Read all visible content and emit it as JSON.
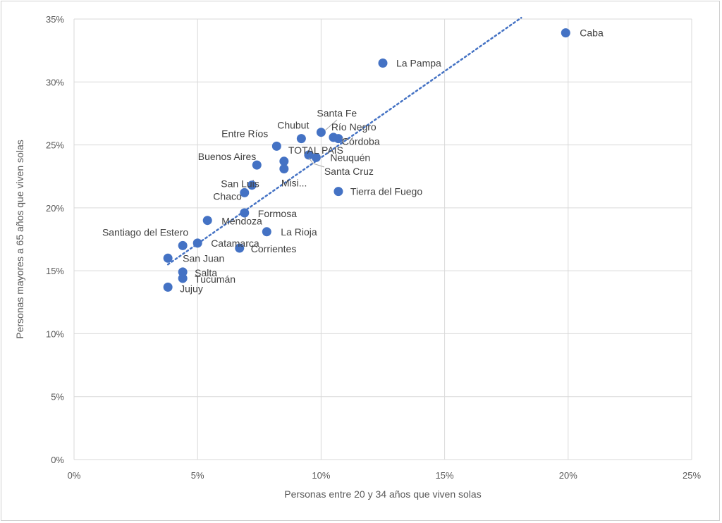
{
  "chart_data": {
    "type": "scatter",
    "title": "",
    "xlabel": "Personas entre 20 y 34 años que viven solas",
    "ylabel": "Personas mayores a 65 años que viven solas",
    "xlim": [
      0,
      0.25
    ],
    "ylim": [
      0,
      0.35
    ],
    "x_ticks": [
      0,
      0.05,
      0.1,
      0.15,
      0.2,
      0.25
    ],
    "y_ticks": [
      0,
      0.05,
      0.1,
      0.15,
      0.2,
      0.25,
      0.3,
      0.35
    ],
    "x_tick_labels": [
      "0%",
      "5%",
      "10%",
      "15%",
      "20%",
      "25%"
    ],
    "y_tick_labels": [
      "0%",
      "5%",
      "10%",
      "15%",
      "20%",
      "25%",
      "30%",
      "35%"
    ],
    "grid": true,
    "legend": "none",
    "marker_color": "#4472c4",
    "trendline": {
      "type": "linear",
      "style": "dotted",
      "color": "#4472c4",
      "x0": 0.038,
      "y0": 0.155,
      "x1": 0.181,
      "y1": 0.351
    },
    "points": [
      {
        "label": "Caba",
        "x": 0.199,
        "y": 0.339
      },
      {
        "label": "La Pampa",
        "x": 0.125,
        "y": 0.315
      },
      {
        "label": "Santa Fe",
        "x": 0.1,
        "y": 0.26
      },
      {
        "label": "Río Negro",
        "x": 0.105,
        "y": 0.256
      },
      {
        "label": "Córdoba",
        "x": 0.107,
        "y": 0.255
      },
      {
        "label": "Chubut",
        "x": 0.092,
        "y": 0.255
      },
      {
        "label": "Entre Ríos",
        "x": 0.082,
        "y": 0.249
      },
      {
        "label": "TOTAL PAIS",
        "x": 0.095,
        "y": 0.242
      },
      {
        "label": "Neuquén",
        "x": 0.098,
        "y": 0.24
      },
      {
        "label": "Santa Cruz",
        "x": 0.085,
        "y": 0.237
      },
      {
        "label": "Buenos Aires",
        "x": 0.074,
        "y": 0.234
      },
      {
        "label": "Misi...",
        "x": 0.085,
        "y": 0.231
      },
      {
        "label": "San Luis",
        "x": 0.072,
        "y": 0.218
      },
      {
        "label": "Chaco",
        "x": 0.069,
        "y": 0.212
      },
      {
        "label": "Tierra del Fuego",
        "x": 0.107,
        "y": 0.213
      },
      {
        "label": "Formosa",
        "x": 0.069,
        "y": 0.196
      },
      {
        "label": "Mendoza",
        "x": 0.054,
        "y": 0.19
      },
      {
        "label": "La Rioja",
        "x": 0.078,
        "y": 0.181
      },
      {
        "label": "Catamarca",
        "x": 0.05,
        "y": 0.172
      },
      {
        "label": "Santiago del Estero",
        "x": 0.044,
        "y": 0.17
      },
      {
        "label": "Corrientes",
        "x": 0.067,
        "y": 0.168
      },
      {
        "label": "San Juan",
        "x": 0.038,
        "y": 0.16
      },
      {
        "label": "Salta",
        "x": 0.044,
        "y": 0.149
      },
      {
        "label": "Tucumán",
        "x": 0.044,
        "y": 0.144
      },
      {
        "label": "Jujuy",
        "x": 0.038,
        "y": 0.137
      }
    ]
  }
}
